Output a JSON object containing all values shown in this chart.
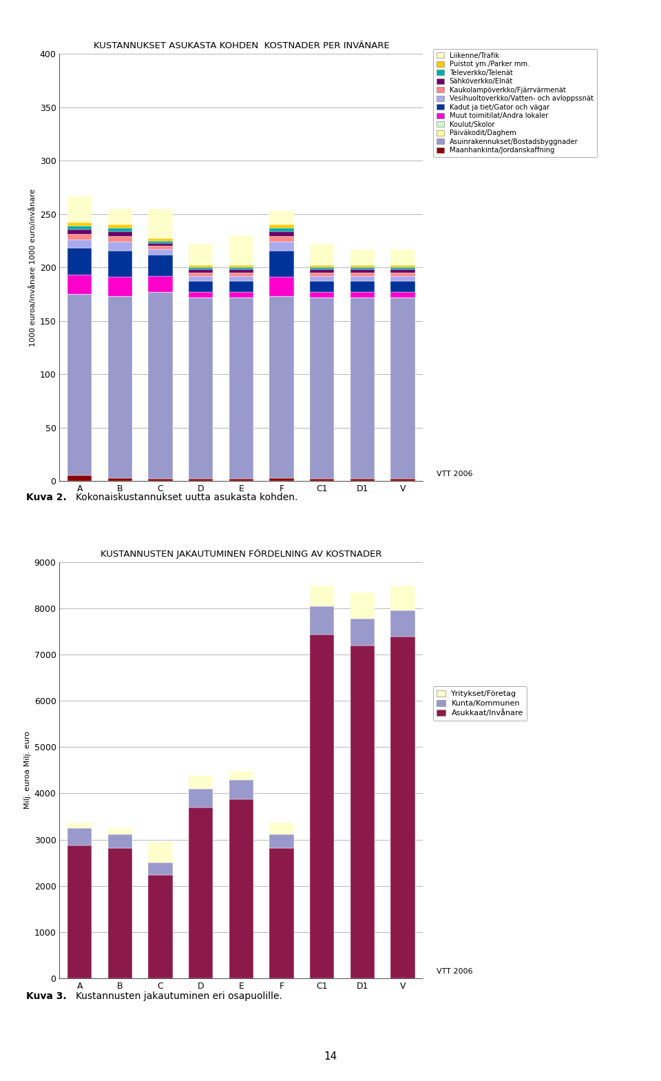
{
  "chart1": {
    "title": "KUSTANNUKSET ASUKASTA KOHDEN  KOSTNADER PER INVÄNARE",
    "ylabel": "1000 euroa/invånare 1000 euro/invånare",
    "categories": [
      "A",
      "B",
      "C",
      "D",
      "E",
      "F",
      "C1",
      "D1",
      "V"
    ],
    "ylim": [
      0,
      400
    ],
    "yticks": [
      0,
      50,
      100,
      150,
      200,
      250,
      300,
      350,
      400
    ],
    "legend_labels": [
      "Liikenne/Trafik",
      "Puistot ym./Parker mm.",
      "Televerkko/Telenät",
      "Sähköverkko/Elnät",
      "Kaukolampöverkko/Fjärrvärmenät",
      "Vesihuoltoverkko/Vatten- och avloppssnät",
      "Kadut ja tiet/Gator och vägar",
      "Muut toimitilat/Andra lokaler",
      "Koulut/Skolor",
      "Päiväkodit/Daghem",
      "Asuinrakennukset/Bostadsbyggnader",
      "Maanhankinta/Jordanskaffning"
    ],
    "stack_colors": [
      "#8B0000",
      "#9999CC",
      "#FFFF99",
      "#CCFFCC",
      "#FF00CC",
      "#003399",
      "#AAAAEE",
      "#FF8888",
      "#660066",
      "#00AAAA",
      "#FFCC00",
      "#FFFFCC"
    ],
    "stack_data": [
      [
        5,
        3,
        2,
        2,
        2,
        3,
        2,
        2,
        2
      ],
      [
        170,
        170,
        175,
        170,
        170,
        170,
        170,
        170,
        170
      ],
      [
        0,
        0,
        0,
        0,
        0,
        0,
        0,
        0,
        0
      ],
      [
        0,
        0,
        0,
        0,
        0,
        0,
        0,
        0,
        0
      ],
      [
        18,
        18,
        15,
        5,
        5,
        18,
        5,
        5,
        5
      ],
      [
        25,
        25,
        20,
        10,
        10,
        25,
        10,
        10,
        10
      ],
      [
        8,
        8,
        5,
        5,
        5,
        8,
        5,
        5,
        5
      ],
      [
        5,
        5,
        3,
        3,
        3,
        5,
        3,
        3,
        3
      ],
      [
        5,
        5,
        3,
        3,
        3,
        5,
        3,
        3,
        3
      ],
      [
        3,
        3,
        2,
        2,
        2,
        3,
        2,
        2,
        2
      ],
      [
        3,
        3,
        2,
        2,
        2,
        3,
        2,
        2,
        2
      ],
      [
        25,
        15,
        28,
        20,
        28,
        13,
        20,
        15,
        15
      ]
    ]
  },
  "chart2": {
    "title": "KUSTANNUSTEN JAKAUTUMINEN FÖRDELNING AV KOSTNADER",
    "ylabel": "Milj. euroa Milj. euro",
    "categories": [
      "A",
      "B",
      "C",
      "D",
      "E",
      "F",
      "C1",
      "D1",
      "V"
    ],
    "ylim": [
      0,
      9000
    ],
    "yticks": [
      0,
      1000,
      2000,
      3000,
      4000,
      5000,
      6000,
      7000,
      8000,
      9000
    ],
    "legend_labels": [
      "Yritykset/Företag",
      "Kunta/Kommunen",
      "Asukkaat/Invånare"
    ],
    "stack_colors": [
      "#8B1A4A",
      "#9999CC",
      "#FFFFCC"
    ],
    "stack_data": [
      [
        2870,
        2820,
        2230,
        3700,
        3870,
        2820,
        7440,
        7200,
        7390
      ],
      [
        370,
        290,
        270,
        400,
        420,
        290,
        600,
        570,
        570
      ],
      [
        130,
        140,
        450,
        280,
        200,
        250,
        450,
        580,
        530
      ]
    ]
  },
  "vtt_label": "VTT 2006",
  "kuva2_label": "Kuva 2.",
  "kuva2_text": "Kokonaiskustannukset uutta asukasta kohden.",
  "kuva3_label": "Kuva 3.",
  "kuva3_text": "Kustannusten jakautuminen eri osapuolille.",
  "page_number": "14"
}
